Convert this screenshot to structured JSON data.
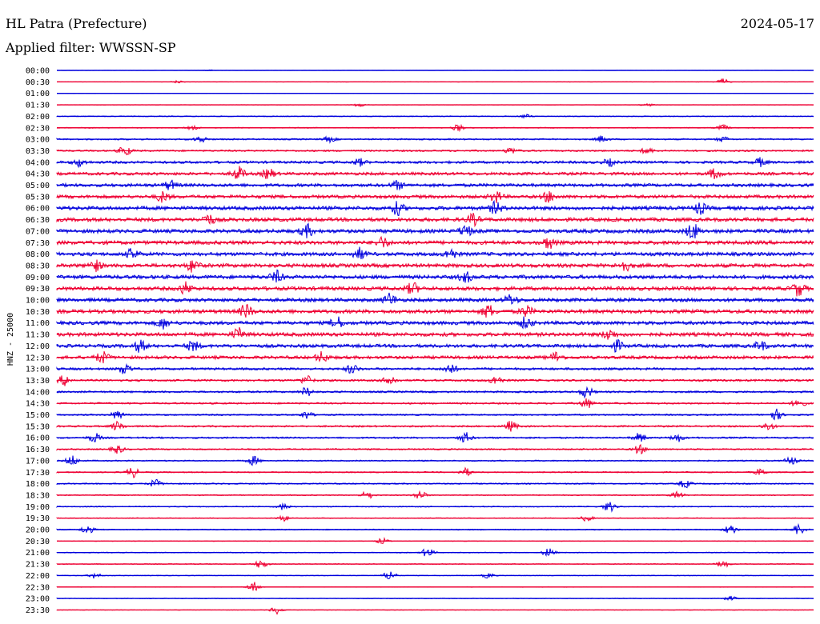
{
  "header": {
    "station": "HL Patra (Prefecture)",
    "date": "2024-05-17",
    "filter": "Applied filter: WWSSN-SP"
  },
  "chart_data": {
    "type": "line",
    "title": "HL Patra (Prefecture)",
    "ylabel": "HNZ - 25000",
    "xlabel": "",
    "grid": false,
    "colors": [
      "#0000dd",
      "#ee0033"
    ],
    "rows": [
      {
        "label": "00:00",
        "amp": 0.05,
        "events": [
          [
            0.2,
            0.12
          ]
        ]
      },
      {
        "label": "00:30",
        "amp": 0.12,
        "events": [
          [
            0.16,
            0.22
          ],
          [
            0.88,
            0.55
          ]
        ]
      },
      {
        "label": "01:00",
        "amp": 0.06,
        "events": []
      },
      {
        "label": "01:30",
        "amp": 0.08,
        "events": [
          [
            0.4,
            0.35
          ],
          [
            0.78,
            0.3
          ]
        ]
      },
      {
        "label": "02:00",
        "amp": 0.2,
        "events": [
          [
            0.62,
            0.3
          ]
        ]
      },
      {
        "label": "02:30",
        "amp": 0.22,
        "events": [
          [
            0.18,
            0.3
          ],
          [
            0.53,
            0.55
          ],
          [
            0.88,
            0.5
          ]
        ]
      },
      {
        "label": "03:00",
        "amp": 0.35,
        "events": [
          [
            0.19,
            0.55
          ],
          [
            0.36,
            0.45
          ],
          [
            0.72,
            0.55
          ],
          [
            0.88,
            0.45
          ]
        ]
      },
      {
        "label": "03:30",
        "amp": 0.4,
        "events": [
          [
            0.09,
            0.9
          ],
          [
            0.6,
            0.5
          ],
          [
            0.78,
            0.55
          ]
        ]
      },
      {
        "label": "04:00",
        "amp": 0.6,
        "events": [
          [
            0.03,
            0.7
          ],
          [
            0.4,
            0.6
          ],
          [
            0.73,
            0.6
          ],
          [
            0.93,
            0.7
          ]
        ]
      },
      {
        "label": "04:30",
        "amp": 0.7,
        "events": [
          [
            0.24,
            1.2
          ],
          [
            0.28,
            0.9
          ],
          [
            0.87,
            0.9
          ]
        ]
      },
      {
        "label": "05:00",
        "amp": 0.75,
        "events": [
          [
            0.15,
            0.8
          ],
          [
            0.45,
            0.7
          ]
        ]
      },
      {
        "label": "05:30",
        "amp": 0.8,
        "events": [
          [
            0.14,
            0.9
          ],
          [
            0.58,
            1.0
          ],
          [
            0.65,
            0.9
          ]
        ]
      },
      {
        "label": "06:00",
        "amp": 0.9,
        "events": [
          [
            0.45,
            1.1
          ],
          [
            0.58,
            1.0
          ],
          [
            0.85,
            0.9
          ]
        ]
      },
      {
        "label": "06:30",
        "amp": 0.9,
        "events": [
          [
            0.2,
            0.9
          ],
          [
            0.55,
            0.9
          ]
        ]
      },
      {
        "label": "07:00",
        "amp": 0.9,
        "events": [
          [
            0.33,
            1.1
          ],
          [
            0.54,
            1.0
          ],
          [
            0.84,
            1.4
          ]
        ]
      },
      {
        "label": "07:30",
        "amp": 0.9,
        "events": [
          [
            0.43,
            0.9
          ],
          [
            0.65,
            1.0
          ]
        ]
      },
      {
        "label": "08:00",
        "amp": 0.85,
        "events": [
          [
            0.1,
            0.9
          ],
          [
            0.4,
            1.0
          ],
          [
            0.52,
            0.9
          ]
        ]
      },
      {
        "label": "08:30",
        "amp": 0.9,
        "events": [
          [
            0.05,
            1.0
          ],
          [
            0.18,
            1.1
          ],
          [
            0.75,
            0.9
          ]
        ]
      },
      {
        "label": "09:00",
        "amp": 0.9,
        "events": [
          [
            0.29,
            1.0
          ],
          [
            0.54,
            0.9
          ]
        ]
      },
      {
        "label": "09:30",
        "amp": 0.9,
        "events": [
          [
            0.17,
            1.0
          ],
          [
            0.47,
            1.0
          ],
          [
            0.98,
            1.2
          ]
        ]
      },
      {
        "label": "10:00",
        "amp": 0.85,
        "events": [
          [
            0.44,
            1.1
          ],
          [
            0.6,
            0.9
          ]
        ]
      },
      {
        "label": "10:30",
        "amp": 0.9,
        "events": [
          [
            0.25,
            1.2
          ],
          [
            0.57,
            1.1
          ],
          [
            0.62,
            0.9
          ]
        ]
      },
      {
        "label": "11:00",
        "amp": 0.85,
        "events": [
          [
            0.14,
            0.9
          ],
          [
            0.37,
            1.0
          ],
          [
            0.62,
            1.0
          ]
        ]
      },
      {
        "label": "11:30",
        "amp": 0.9,
        "events": [
          [
            0.24,
            1.0
          ],
          [
            0.73,
            0.9
          ]
        ]
      },
      {
        "label": "12:00",
        "amp": 0.8,
        "events": [
          [
            0.11,
            1.0
          ],
          [
            0.18,
            0.9
          ],
          [
            0.74,
            0.9
          ],
          [
            0.93,
            0.8
          ]
        ]
      },
      {
        "label": "12:30",
        "amp": 0.75,
        "events": [
          [
            0.06,
            1.0
          ],
          [
            0.35,
            0.9
          ],
          [
            0.66,
            0.9
          ]
        ]
      },
      {
        "label": "13:00",
        "amp": 0.55,
        "events": [
          [
            0.09,
            1.0
          ],
          [
            0.39,
            0.8
          ],
          [
            0.52,
            0.9
          ]
        ]
      },
      {
        "label": "13:30",
        "amp": 0.5,
        "events": [
          [
            0.01,
            0.9
          ],
          [
            0.33,
            0.8
          ],
          [
            0.44,
            0.9
          ],
          [
            0.58,
            0.8
          ]
        ]
      },
      {
        "label": "14:00",
        "amp": 0.45,
        "events": [
          [
            0.33,
            0.8
          ],
          [
            0.7,
            1.0
          ]
        ]
      },
      {
        "label": "14:30",
        "amp": 0.4,
        "events": [
          [
            0.7,
            0.9
          ],
          [
            0.98,
            0.9
          ]
        ]
      },
      {
        "label": "15:00",
        "amp": 0.35,
        "events": [
          [
            0.08,
            0.8
          ],
          [
            0.33,
            0.7
          ],
          [
            0.95,
            1.0
          ]
        ]
      },
      {
        "label": "15:30",
        "amp": 0.4,
        "events": [
          [
            0.08,
            0.8
          ],
          [
            0.6,
            0.9
          ],
          [
            0.94,
            0.7
          ]
        ]
      },
      {
        "label": "16:00",
        "amp": 0.4,
        "events": [
          [
            0.05,
            0.8
          ],
          [
            0.54,
            0.9
          ],
          [
            0.77,
            0.8
          ],
          [
            0.82,
            0.7
          ]
        ]
      },
      {
        "label": "16:30",
        "amp": 0.35,
        "events": [
          [
            0.08,
            0.7
          ],
          [
            0.77,
            0.8
          ]
        ]
      },
      {
        "label": "17:00",
        "amp": 0.3,
        "events": [
          [
            0.02,
            0.9
          ],
          [
            0.26,
            0.8
          ],
          [
            0.97,
            0.7
          ]
        ]
      },
      {
        "label": "17:30",
        "amp": 0.3,
        "events": [
          [
            0.1,
            0.9
          ],
          [
            0.54,
            0.7
          ],
          [
            0.93,
            0.6
          ]
        ]
      },
      {
        "label": "18:00",
        "amp": 0.3,
        "events": [
          [
            0.13,
            0.7
          ],
          [
            0.83,
            0.7
          ]
        ]
      },
      {
        "label": "18:30",
        "amp": 0.25,
        "events": [
          [
            0.41,
            0.7
          ],
          [
            0.48,
            0.8
          ],
          [
            0.82,
            0.6
          ]
        ]
      },
      {
        "label": "19:00",
        "amp": 0.25,
        "events": [
          [
            0.3,
            0.6
          ],
          [
            0.73,
            0.9
          ]
        ]
      },
      {
        "label": "19:30",
        "amp": 0.2,
        "events": [
          [
            0.3,
            0.5
          ],
          [
            0.7,
            0.5
          ]
        ]
      },
      {
        "label": "20:00",
        "amp": 0.25,
        "events": [
          [
            0.04,
            0.8
          ],
          [
            0.89,
            0.9
          ],
          [
            0.98,
            1.0
          ]
        ]
      },
      {
        "label": "20:30",
        "amp": 0.15,
        "events": [
          [
            0.43,
            0.5
          ]
        ]
      },
      {
        "label": "21:00",
        "amp": 0.2,
        "events": [
          [
            0.49,
            0.8
          ],
          [
            0.65,
            0.8
          ]
        ]
      },
      {
        "label": "21:30",
        "amp": 0.2,
        "events": [
          [
            0.27,
            0.8
          ],
          [
            0.88,
            0.7
          ]
        ]
      },
      {
        "label": "22:00",
        "amp": 0.15,
        "events": [
          [
            0.05,
            0.5
          ],
          [
            0.44,
            0.9
          ],
          [
            0.57,
            0.5
          ]
        ]
      },
      {
        "label": "22:30",
        "amp": 0.15,
        "events": [
          [
            0.26,
            0.9
          ]
        ]
      },
      {
        "label": "23:00",
        "amp": 0.15,
        "events": [
          [
            0.89,
            0.4
          ]
        ]
      },
      {
        "label": "23:30",
        "amp": 0.12,
        "events": [
          [
            0.29,
            0.7
          ]
        ]
      }
    ]
  }
}
